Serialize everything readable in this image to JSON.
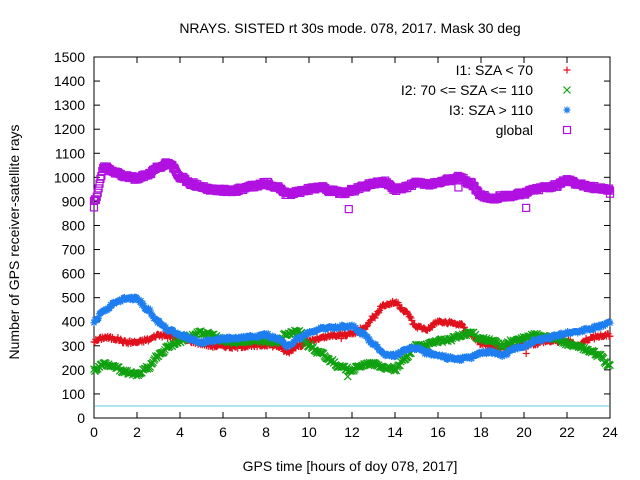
{
  "chart_data": {
    "type": "scatter",
    "title": "NRAYS. SISTED rt 30s mode. 078, 2017. Mask 30 deg",
    "xlabel": "GPS time [hours of doy 078, 2017]",
    "ylabel": "Number of GPS receiver-satellite rays",
    "xlim": [
      0,
      24
    ],
    "ylim": [
      0,
      1500
    ],
    "xticks": [
      0,
      2,
      4,
      6,
      8,
      10,
      12,
      14,
      16,
      18,
      20,
      22,
      24
    ],
    "yticks": [
      0,
      100,
      200,
      300,
      400,
      500,
      600,
      700,
      800,
      900,
      1000,
      1100,
      1200,
      1300,
      1400,
      1500
    ],
    "grid": false,
    "legend_position": "top-right",
    "threshold_line": {
      "y": 50,
      "color": "#5ec8d8"
    },
    "series": [
      {
        "name": "I1: SZA < 70",
        "marker": "+",
        "color": "#e0101c",
        "x": [
          0,
          0.5,
          1,
          1.5,
          2,
          2.5,
          3,
          3.5,
          4,
          4.5,
          5,
          5.5,
          6,
          6.5,
          7,
          7.5,
          8,
          8.5,
          9,
          9.5,
          10,
          10.5,
          11,
          11.5,
          12,
          12.5,
          13,
          13.5,
          14,
          14.5,
          15,
          15.5,
          16,
          16.5,
          17,
          17.5,
          18,
          18.5,
          19,
          19.5,
          20,
          20.5,
          21,
          21.5,
          22,
          22.5,
          23,
          23.5,
          24
        ],
        "y": [
          320,
          335,
          330,
          315,
          315,
          325,
          345,
          340,
          330,
          320,
          310,
          300,
          300,
          295,
          300,
          300,
          305,
          300,
          275,
          300,
          320,
          330,
          340,
          345,
          350,
          370,
          420,
          470,
          480,
          440,
          380,
          370,
          400,
          395,
          390,
          350,
          310,
          300,
          290,
          295,
          300,
          310,
          320,
          320,
          320,
          300,
          330,
          340,
          345
        ],
        "outliers": [
          [
            11.5,
            330
          ],
          [
            20.1,
            268
          ]
        ]
      },
      {
        "name": "I2: 70 <= SZA <= 110",
        "marker": "x",
        "color": "#10a010",
        "x": [
          0,
          0.5,
          1,
          1.5,
          2,
          2.5,
          3,
          3.5,
          4,
          4.5,
          5,
          5.5,
          6,
          6.5,
          7,
          7.5,
          8,
          8.5,
          9,
          9.5,
          10,
          10.5,
          11,
          11.5,
          12,
          12.5,
          13,
          13.5,
          14,
          14.5,
          15,
          15.5,
          16,
          16.5,
          17,
          17.5,
          18,
          18.5,
          19,
          19.5,
          20,
          20.5,
          21,
          21.5,
          22,
          22.5,
          23,
          23.5,
          24
        ],
        "y": [
          200,
          225,
          210,
          190,
          180,
          210,
          260,
          300,
          320,
          340,
          355,
          345,
          320,
          315,
          320,
          325,
          320,
          315,
          350,
          360,
          300,
          270,
          240,
          210,
          200,
          220,
          225,
          210,
          200,
          250,
          300,
          305,
          320,
          325,
          340,
          355,
          330,
          320,
          300,
          320,
          330,
          345,
          340,
          330,
          310,
          295,
          280,
          260,
          215
        ],
        "outliers": [
          [
            11.8,
            172
          ]
        ]
      },
      {
        "name": "I3: SZA > 110",
        "marker": "*",
        "color": "#1e7ef0",
        "x": [
          0,
          0.5,
          1,
          1.5,
          2,
          2.5,
          3,
          3.5,
          4,
          4.5,
          5,
          5.5,
          6,
          6.5,
          7,
          7.5,
          8,
          8.5,
          9,
          9.5,
          10,
          10.5,
          11,
          11.5,
          12,
          12.5,
          13,
          13.5,
          14,
          14.5,
          15,
          15.5,
          16,
          16.5,
          17,
          17.5,
          18,
          18.5,
          19,
          19.5,
          20,
          20.5,
          21,
          21.5,
          22,
          22.5,
          23,
          23.5,
          24
        ],
        "y": [
          400,
          450,
          480,
          500,
          495,
          450,
          400,
          365,
          345,
          330,
          315,
          320,
          330,
          330,
          335,
          340,
          345,
          330,
          300,
          330,
          355,
          370,
          375,
          380,
          380,
          350,
          310,
          265,
          260,
          285,
          290,
          270,
          260,
          250,
          245,
          250,
          270,
          275,
          260,
          285,
          300,
          320,
          330,
          340,
          355,
          360,
          370,
          380,
          395
        ],
        "outliers": []
      },
      {
        "name": "global",
        "marker": "square",
        "color": "#b010e0",
        "x": [
          0,
          0.5,
          1,
          1.5,
          2,
          2.5,
          3,
          3.5,
          4,
          4.5,
          5,
          5.5,
          6,
          6.5,
          7,
          7.5,
          8,
          8.5,
          9,
          9.5,
          10,
          10.5,
          11,
          11.5,
          12,
          12.5,
          13,
          13.5,
          14,
          14.5,
          15,
          15.5,
          16,
          16.5,
          17,
          17.5,
          18,
          18.5,
          19,
          19.5,
          20,
          20.5,
          21,
          21.5,
          22,
          22.5,
          23,
          23.5,
          24
        ],
        "y": [
          900,
          1040,
          1020,
          1005,
          995,
          1010,
          1040,
          1060,
          1000,
          975,
          960,
          950,
          945,
          945,
          955,
          965,
          975,
          960,
          930,
          940,
          950,
          960,
          945,
          935,
          945,
          960,
          975,
          980,
          950,
          960,
          975,
          970,
          975,
          990,
          1000,
          975,
          925,
          910,
          920,
          925,
          935,
          950,
          960,
          965,
          990,
          975,
          960,
          955,
          950
        ],
        "outliers": [
          [
            0,
            875
          ],
          [
            11.85,
            868
          ],
          [
            16.95,
            958
          ],
          [
            20.1,
            873
          ],
          [
            24,
            932
          ]
        ]
      }
    ]
  }
}
